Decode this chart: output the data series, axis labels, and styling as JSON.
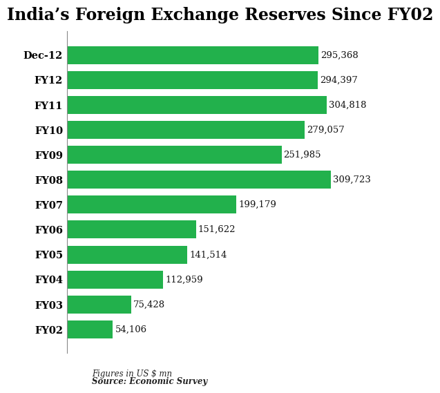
{
  "title": "India’s Foreign Exchange Reserves Since FY02",
  "categories": [
    "Dec-12",
    "FY12",
    "FY11",
    "FY10",
    "FY09",
    "FY08",
    "FY07",
    "FY06",
    "FY05",
    "FY04",
    "FY03",
    "FY02"
  ],
  "values": [
    295368,
    294397,
    304818,
    279057,
    251985,
    309723,
    199179,
    151622,
    141514,
    112959,
    75428,
    54106
  ],
  "labels": [
    "295,368",
    "294,397",
    "304,818",
    "279,057",
    "251,985",
    "309,723",
    "199,179",
    "151,622",
    "141,514",
    "112,959",
    "75,428",
    "54,106"
  ],
  "bar_color": "#22b14c",
  "bg_color": "#ffffff",
  "title_fontsize": 17,
  "label_fontsize": 9.5,
  "tick_fontsize": 10.5,
  "footnote1": "Figures in US $ mn",
  "footnote2": "Source: Economic Survey",
  "xlim": [
    0,
    360000
  ]
}
